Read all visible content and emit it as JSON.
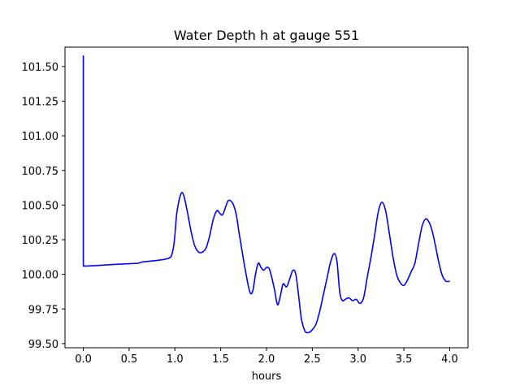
{
  "chart_data": {
    "type": "line",
    "title": "Water Depth h at gauge 551",
    "xlabel": "hours",
    "ylabel": "",
    "xlim": [
      -0.2,
      4.2
    ],
    "ylim": [
      99.47,
      101.64
    ],
    "x_ticks": [
      0.0,
      0.5,
      1.0,
      1.5,
      2.0,
      2.5,
      3.0,
      3.5,
      4.0
    ],
    "x_tick_labels": [
      "0.0",
      "0.5",
      "1.0",
      "1.5",
      "2.0",
      "2.5",
      "3.0",
      "3.5",
      "4.0"
    ],
    "y_ticks": [
      99.5,
      99.75,
      100.0,
      100.25,
      100.5,
      100.75,
      101.0,
      101.25,
      101.5
    ],
    "y_tick_labels": [
      "99.50",
      "99.75",
      "100.00",
      "100.25",
      "100.50",
      "100.75",
      "101.00",
      "101.25",
      "101.50"
    ],
    "grid": false,
    "series": [
      {
        "name": "",
        "color": "#0000ff",
        "x": [
          0.0,
          0.0,
          0.0,
          0.3,
          0.6,
          0.65,
          0.8,
          0.9,
          0.96,
          0.99,
          1.02,
          1.06,
          1.09,
          1.13,
          1.18,
          1.22,
          1.26,
          1.3,
          1.34,
          1.38,
          1.42,
          1.46,
          1.49,
          1.52,
          1.55,
          1.58,
          1.61,
          1.64,
          1.67,
          1.7,
          1.74,
          1.78,
          1.82,
          1.85,
          1.88,
          1.91,
          1.94,
          1.97,
          2.0,
          2.03,
          2.06,
          2.09,
          2.12,
          2.15,
          2.18,
          2.22,
          2.26,
          2.29,
          2.32,
          2.35,
          2.38,
          2.42,
          2.46,
          2.5,
          2.54,
          2.58,
          2.62,
          2.66,
          2.7,
          2.74,
          2.77,
          2.8,
          2.83,
          2.86,
          2.9,
          2.94,
          2.98,
          3.02,
          3.06,
          3.1,
          3.14,
          3.18,
          3.22,
          3.26,
          3.3,
          3.34,
          3.38,
          3.42,
          3.46,
          3.5,
          3.54,
          3.58,
          3.62,
          3.66,
          3.7,
          3.74,
          3.78,
          3.81,
          3.84,
          3.88,
          3.92,
          3.96,
          4.0
        ],
        "values": [
          101.58,
          100.06,
          100.06,
          100.07,
          100.08,
          100.09,
          100.1,
          100.11,
          100.13,
          100.22,
          100.44,
          100.57,
          100.58,
          100.47,
          100.3,
          100.2,
          100.16,
          100.16,
          100.19,
          100.28,
          100.4,
          100.46,
          100.44,
          100.43,
          100.48,
          100.53,
          100.53,
          100.5,
          100.43,
          100.3,
          100.14,
          99.99,
          99.87,
          99.88,
          100.0,
          100.08,
          100.05,
          100.03,
          100.05,
          100.04,
          99.97,
          99.88,
          99.78,
          99.84,
          99.93,
          99.91,
          99.98,
          100.03,
          100.0,
          99.85,
          99.68,
          99.59,
          99.58,
          99.6,
          99.64,
          99.73,
          99.85,
          99.97,
          100.09,
          100.15,
          100.09,
          99.87,
          99.81,
          99.82,
          99.83,
          99.81,
          99.82,
          99.79,
          99.83,
          99.98,
          100.12,
          100.28,
          100.45,
          100.52,
          100.46,
          100.3,
          100.13,
          100.0,
          99.94,
          99.92,
          99.96,
          100.02,
          100.08,
          100.22,
          100.35,
          100.4,
          100.37,
          100.31,
          100.22,
          100.09,
          99.99,
          99.95,
          99.95
        ]
      }
    ]
  }
}
